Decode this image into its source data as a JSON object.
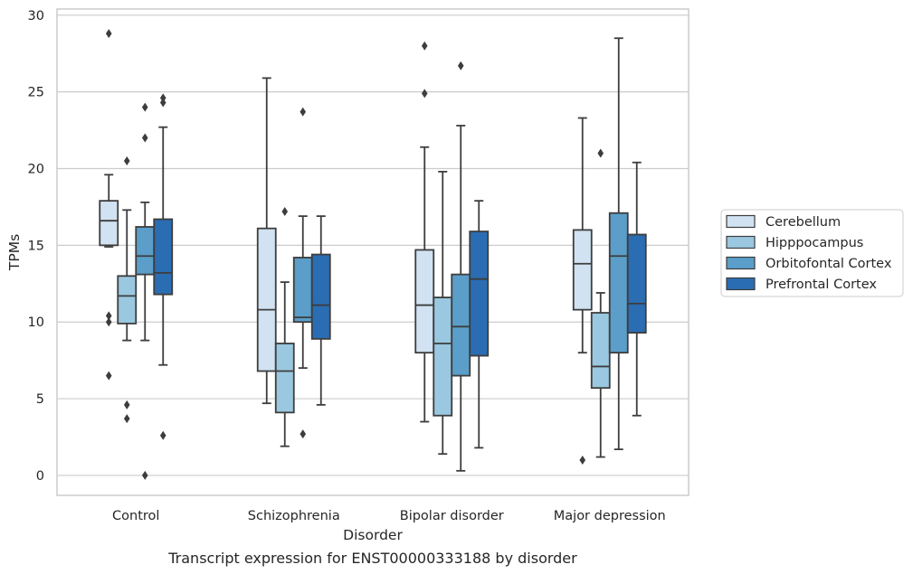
{
  "chart_data": {
    "type": "box",
    "caption": "Transcript expression for ENST00000333188 by disorder",
    "xlabel": "Disorder",
    "ylabel": "TPMs",
    "ylim": [
      -1.3,
      30.4
    ],
    "yticks": [
      0,
      5,
      10,
      15,
      20,
      25,
      30
    ],
    "grid": "horizontal",
    "legend_position": "right",
    "categories": [
      "Control",
      "Schizophrenia",
      "Bipolar disorder",
      "Major depression"
    ],
    "series": [
      {
        "name": "Cerebellum",
        "color": "#d1e2f2",
        "boxes": [
          {
            "whisker_low": 14.9,
            "q1": 15.0,
            "median": 16.6,
            "q3": 17.9,
            "whisker_high": 19.6,
            "outliers": [
              28.8,
              10.4,
              10.0,
              6.5
            ]
          },
          {
            "whisker_low": 4.7,
            "q1": 6.8,
            "median": 10.8,
            "q3": 16.1,
            "whisker_high": 25.9,
            "outliers": []
          },
          {
            "whisker_low": 3.5,
            "q1": 8.0,
            "median": 11.1,
            "q3": 14.7,
            "whisker_high": 21.4,
            "outliers": [
              28.0,
              24.9
            ]
          },
          {
            "whisker_low": 8.0,
            "q1": 10.8,
            "median": 13.8,
            "q3": 16.0,
            "whisker_high": 23.3,
            "outliers": [
              1.0
            ]
          }
        ]
      },
      {
        "name": "Hipppocampus",
        "color": "#9ac8e0",
        "boxes": [
          {
            "whisker_low": 8.8,
            "q1": 9.9,
            "median": 11.7,
            "q3": 13.0,
            "whisker_high": 17.3,
            "outliers": [
              20.5,
              4.6,
              3.7
            ]
          },
          {
            "whisker_low": 1.9,
            "q1": 4.1,
            "median": 6.8,
            "q3": 8.6,
            "whisker_high": 12.6,
            "outliers": [
              17.2
            ]
          },
          {
            "whisker_low": 1.4,
            "q1": 3.9,
            "median": 8.6,
            "q3": 11.6,
            "whisker_high": 19.8,
            "outliers": []
          },
          {
            "whisker_low": 1.2,
            "q1": 5.7,
            "median": 7.1,
            "q3": 10.6,
            "whisker_high": 11.9,
            "outliers": [
              21.0
            ]
          }
        ]
      },
      {
        "name": "Orbitofontal Cortex",
        "color": "#5a9ec9",
        "boxes": [
          {
            "whisker_low": 8.8,
            "q1": 13.1,
            "median": 14.3,
            "q3": 16.2,
            "whisker_high": 17.8,
            "outliers": [
              24.0,
              22.0,
              0.0
            ]
          },
          {
            "whisker_low": 7.0,
            "q1": 10.0,
            "median": 10.3,
            "q3": 14.2,
            "whisker_high": 16.9,
            "outliers": [
              23.7,
              2.7
            ]
          },
          {
            "whisker_low": 0.3,
            "q1": 6.5,
            "median": 9.7,
            "q3": 13.1,
            "whisker_high": 22.8,
            "outliers": [
              26.7
            ]
          },
          {
            "whisker_low": 1.7,
            "q1": 8.0,
            "median": 14.3,
            "q3": 17.1,
            "whisker_high": 28.5,
            "outliers": []
          }
        ]
      },
      {
        "name": "Prefrontal Cortex",
        "color": "#2a6db2",
        "boxes": [
          {
            "whisker_low": 7.2,
            "q1": 11.8,
            "median": 13.2,
            "q3": 16.7,
            "whisker_high": 22.7,
            "outliers": [
              24.6,
              24.3,
              2.6
            ]
          },
          {
            "whisker_low": 4.6,
            "q1": 8.9,
            "median": 11.1,
            "q3": 14.4,
            "whisker_high": 16.9,
            "outliers": []
          },
          {
            "whisker_low": 1.8,
            "q1": 7.8,
            "median": 12.8,
            "q3": 15.9,
            "whisker_high": 17.9,
            "outliers": []
          },
          {
            "whisker_low": 3.9,
            "q1": 9.3,
            "median": 11.2,
            "q3": 15.7,
            "whisker_high": 20.4,
            "outliers": []
          }
        ]
      }
    ]
  }
}
